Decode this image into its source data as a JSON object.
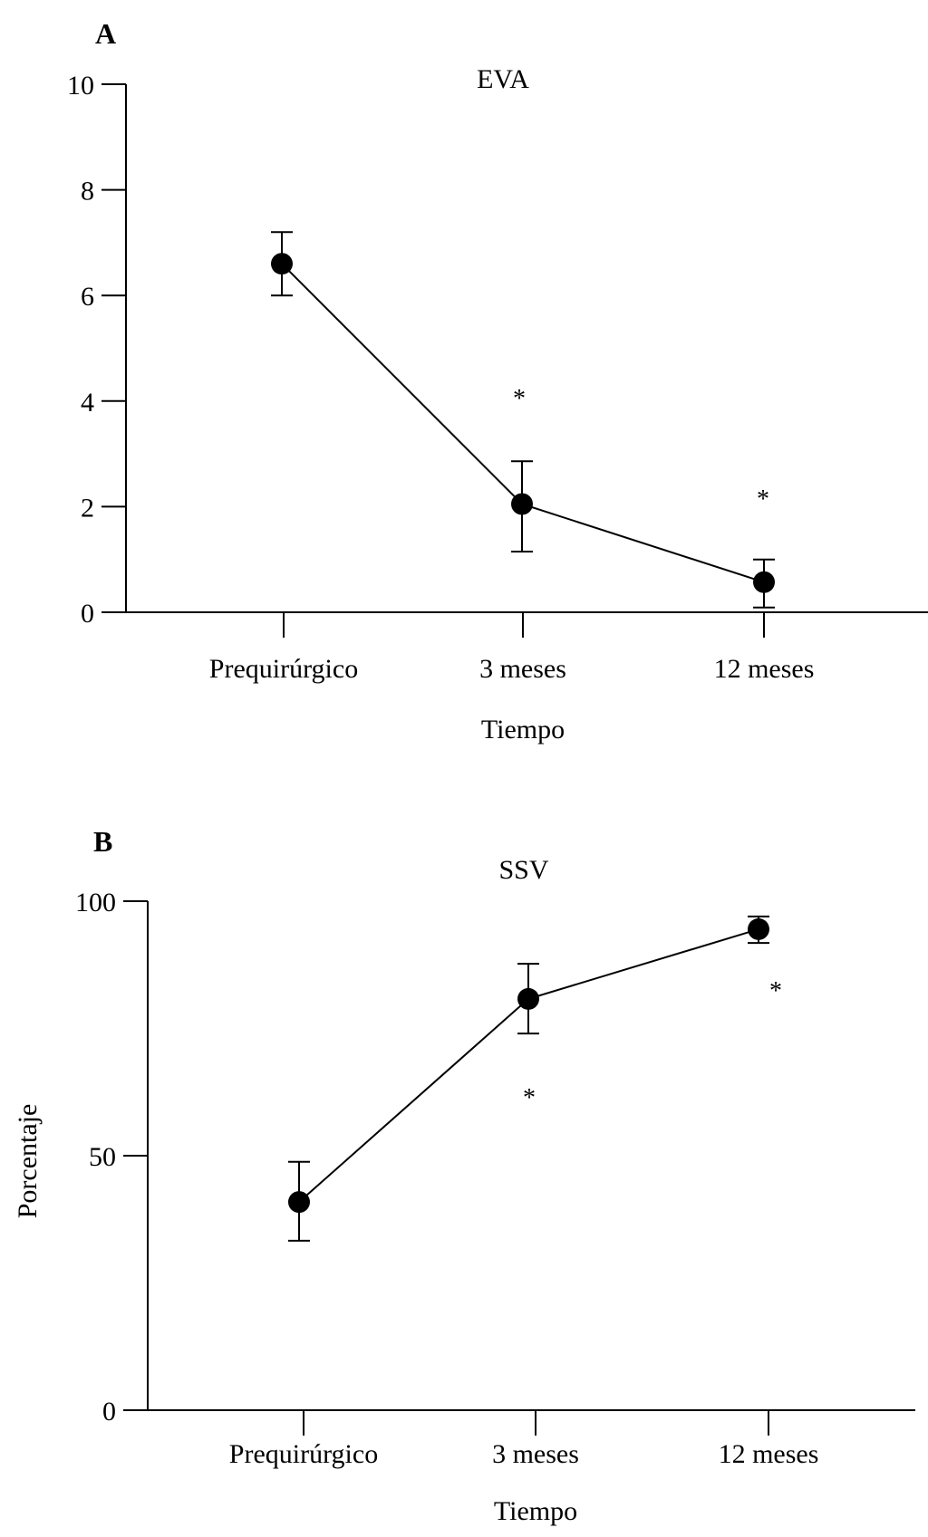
{
  "chart_data": [
    {
      "type": "line",
      "panel_label": "A",
      "title": "EVA",
      "xlabel": "Tiempo",
      "ylabel": "",
      "categories": [
        "Prequirúrgico",
        "3 meses",
        "12 meses"
      ],
      "series": [
        {
          "name": "EVA",
          "values": [
            6.6,
            2.05,
            0.57
          ],
          "error_upper": [
            7.2,
            2.86,
            1.0
          ],
          "error_lower": [
            6.0,
            1.15,
            0.09
          ]
        }
      ],
      "significance_markers": [
        {
          "category": "3 meses",
          "symbol": "*",
          "y": 4.2
        },
        {
          "category": "12 meses",
          "symbol": "*",
          "y": 2.3
        }
      ],
      "ylim": [
        0,
        10
      ],
      "yticks": [
        0,
        2,
        4,
        6,
        8,
        10
      ],
      "grid": false,
      "legend": "none"
    },
    {
      "type": "line",
      "panel_label": "B",
      "title": "SSV",
      "xlabel": "Tiempo",
      "ylabel": "Porcentaje",
      "categories": [
        "Prequirúrgico",
        "3 meses",
        "12 meses"
      ],
      "series": [
        {
          "name": "SSV",
          "values": [
            40.9,
            80.8,
            94.5
          ],
          "error_upper": [
            48.8,
            87.7,
            97.0
          ],
          "error_lower": [
            33.3,
            74.0,
            91.8
          ]
        }
      ],
      "significance_markers": [
        {
          "category": "3 meses",
          "symbol": "*",
          "y": 63
        },
        {
          "category": "12 meses",
          "symbol": "*",
          "y": 84
        }
      ],
      "ylim": [
        0,
        100
      ],
      "yticks": [
        0,
        50,
        100
      ],
      "grid": false,
      "legend": "none"
    }
  ]
}
